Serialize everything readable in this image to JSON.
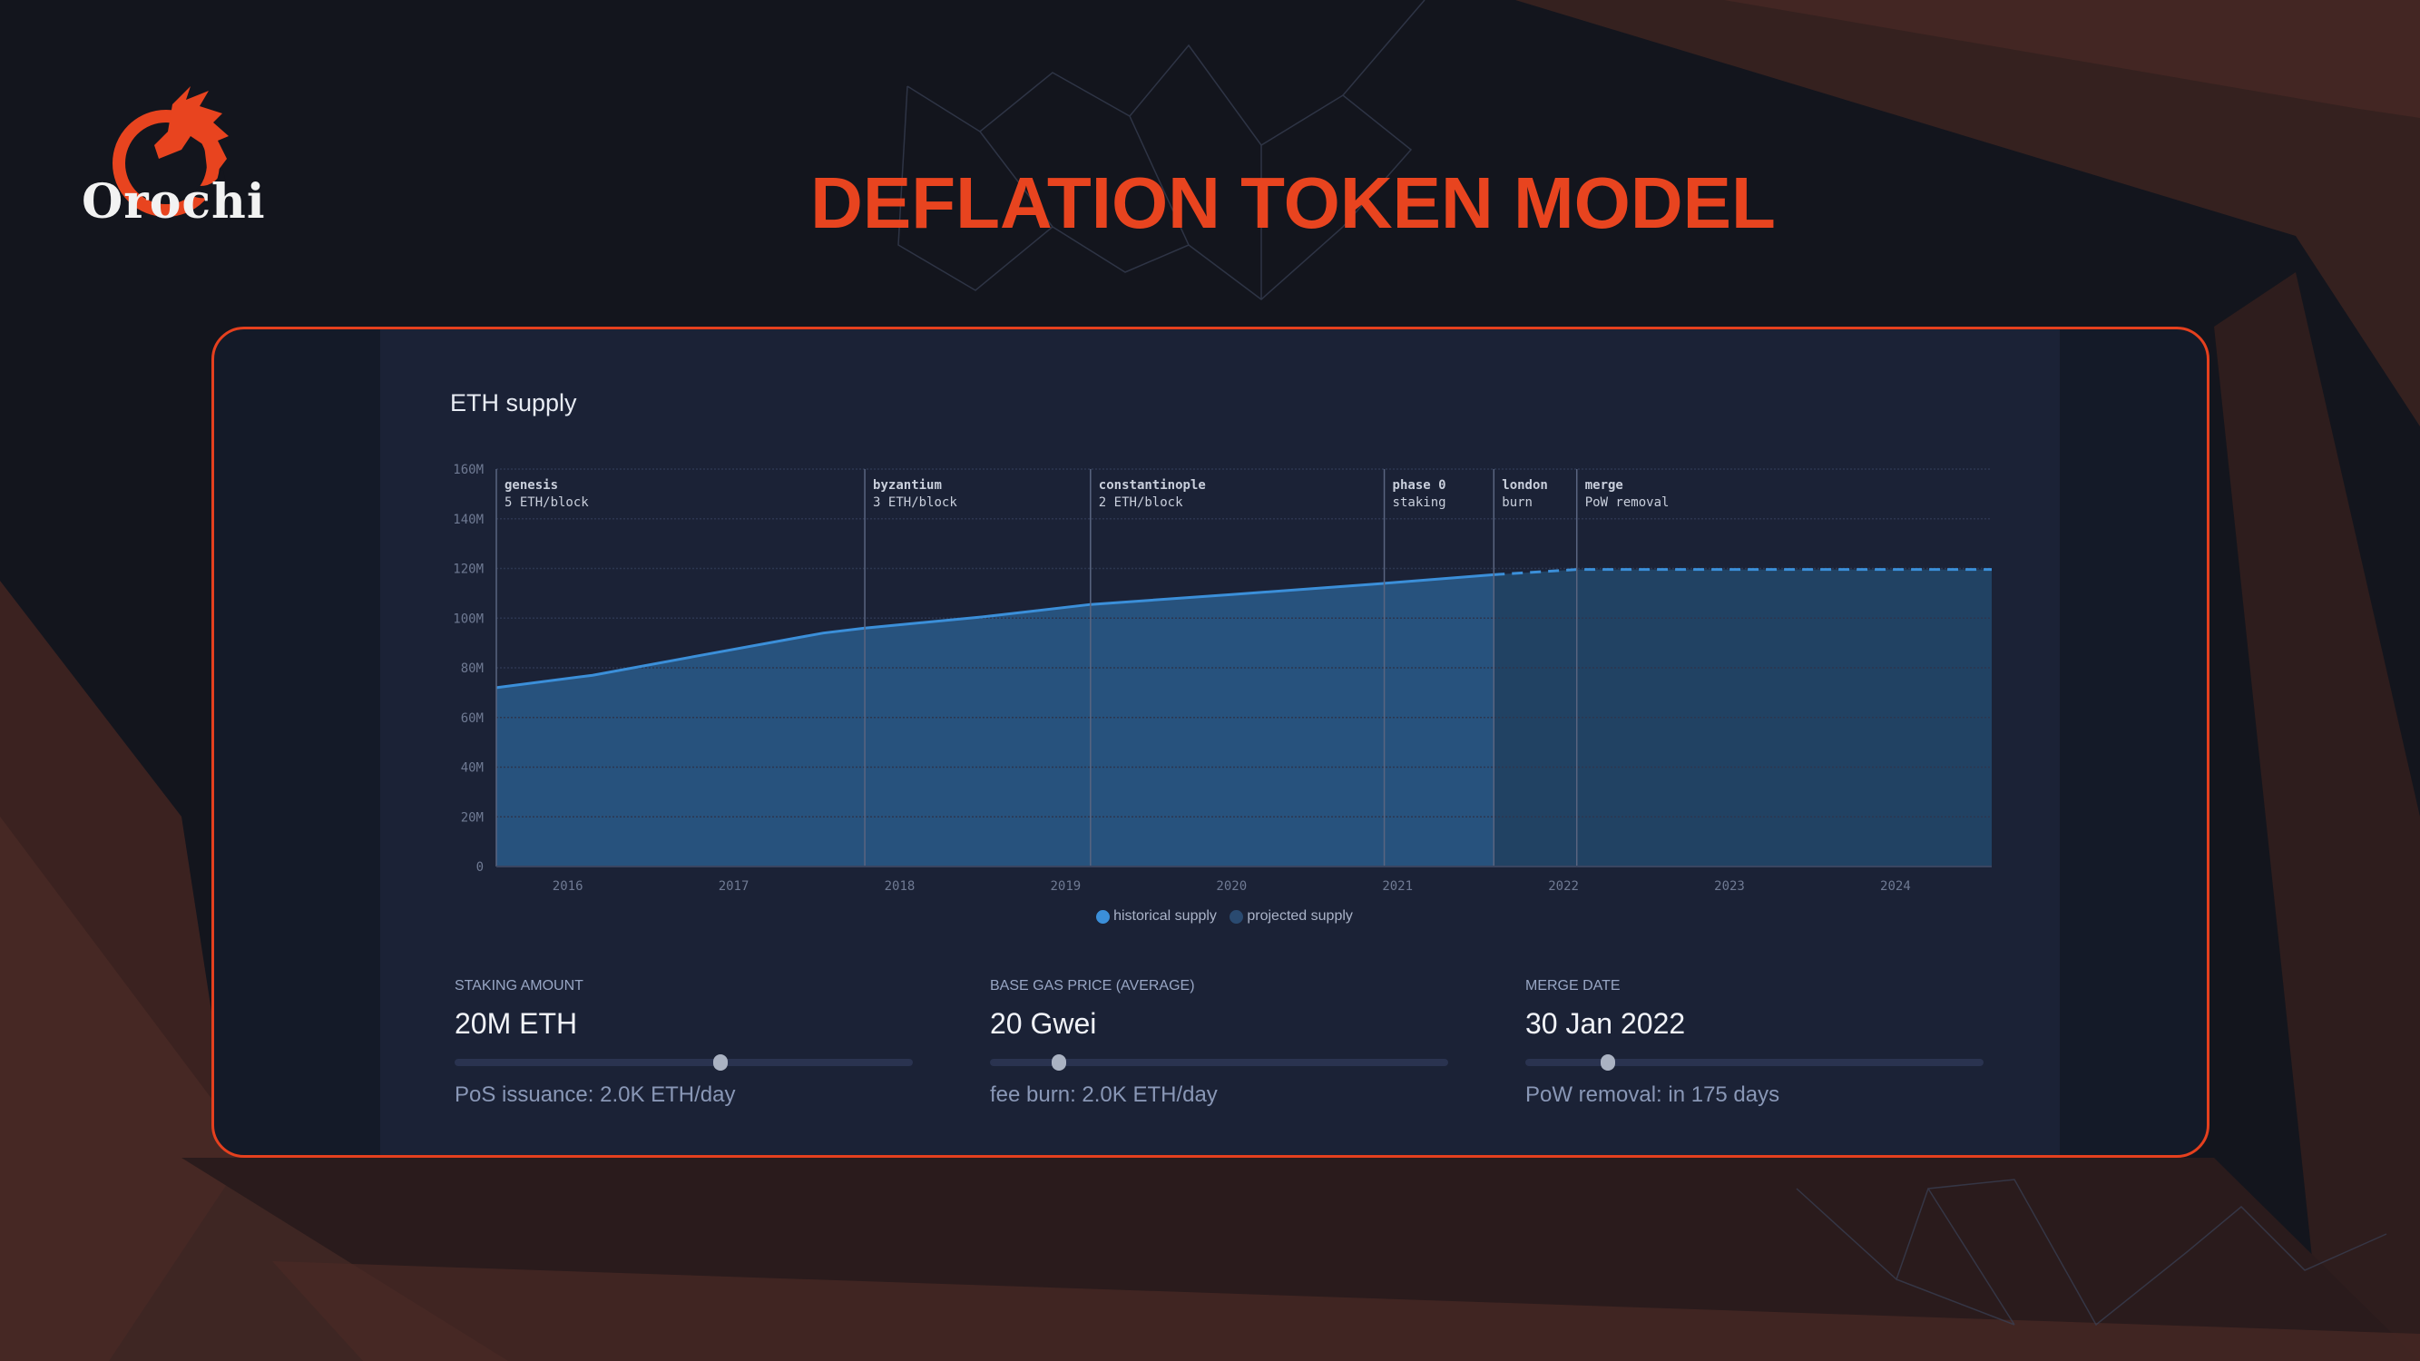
{
  "brand": {
    "name": "Orochi",
    "accent": "#e8441f"
  },
  "page_title": "DEFLATION TOKEN MODEL",
  "chart_data": {
    "type": "area",
    "title": "ETH supply",
    "xlim": [
      2015.57,
      2024.58
    ],
    "ylim": [
      0,
      160
    ],
    "y_ticks": [
      "0",
      "20M",
      "40M",
      "60M",
      "80M",
      "100M",
      "120M",
      "140M",
      "160M"
    ],
    "y_tick_values": [
      0,
      20,
      40,
      60,
      80,
      100,
      120,
      140,
      160
    ],
    "x_ticks": [
      "2016",
      "2017",
      "2018",
      "2019",
      "2020",
      "2021",
      "2022",
      "2023",
      "2024"
    ],
    "x_tick_values": [
      2016,
      2017,
      2018,
      2019,
      2020,
      2021,
      2022,
      2023,
      2024
    ],
    "grid": true,
    "legend_position": "bottom-center",
    "series": [
      {
        "name": "historical supply",
        "color": "#3b8fd9",
        "fill": "#27527d",
        "style": "solid",
        "x": [
          2015.57,
          2016.15,
          2016.8,
          2017.54,
          2017.79,
          2018.5,
          2019.15,
          2020.0,
          2020.92,
          2021.58
        ],
        "y": [
          72,
          77,
          85,
          94,
          96,
          100.5,
          105.5,
          109.5,
          114,
          117.5
        ]
      },
      {
        "name": "projected supply",
        "color": "#3b8fd9",
        "fill": "#214263",
        "style": "dashed",
        "x": [
          2021.58,
          2022.08,
          2024.58
        ],
        "y": [
          117.5,
          119.6,
          119.6
        ]
      }
    ],
    "annotations": [
      {
        "x": 2015.57,
        "name": "genesis",
        "detail": "5 ETH/block"
      },
      {
        "x": 2017.79,
        "name": "byzantium",
        "detail": "3 ETH/block"
      },
      {
        "x": 2019.15,
        "name": "constantinople",
        "detail": "2 ETH/block"
      },
      {
        "x": 2020.92,
        "name": "phase 0",
        "detail": "staking"
      },
      {
        "x": 2021.58,
        "name": "london",
        "detail": "burn"
      },
      {
        "x": 2022.08,
        "name": "merge",
        "detail": "PoW removal"
      }
    ]
  },
  "controls": [
    {
      "label": "STAKING AMOUNT",
      "value": "20M ETH",
      "slider_fraction": 0.58,
      "sub": "PoS issuance: 2.0K ETH/day"
    },
    {
      "label": "BASE GAS PRICE (AVERAGE)",
      "value": "20 Gwei",
      "slider_fraction": 0.15,
      "sub": "fee burn: 2.0K ETH/day"
    },
    {
      "label": "MERGE DATE",
      "value": "30 Jan 2022",
      "slider_fraction": 0.18,
      "sub": "PoW removal: in 175 days"
    }
  ]
}
